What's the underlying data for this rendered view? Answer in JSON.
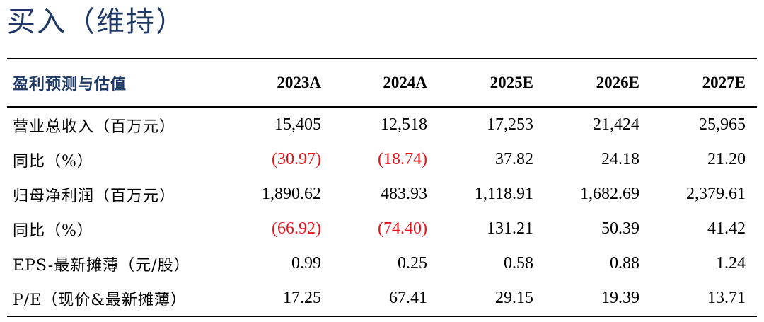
{
  "rating": "买入（维持）",
  "table": {
    "metric_header": "盈利预测与估值",
    "years": [
      "2023A",
      "2024A",
      "2025E",
      "2026E",
      "2027E"
    ],
    "negative_color": "#e8141b",
    "rows": [
      {
        "label": "营业总收入（百万元）",
        "values": [
          "15,405",
          "12,518",
          "17,253",
          "21,424",
          "25,965"
        ],
        "negative": [
          false,
          false,
          false,
          false,
          false
        ]
      },
      {
        "label": "同比（%）",
        "values": [
          "(30.97)",
          "(18.74)",
          "37.82",
          "24.18",
          "21.20"
        ],
        "negative": [
          true,
          true,
          false,
          false,
          false
        ]
      },
      {
        "label": "归母净利润（百万元）",
        "values": [
          "1,890.62",
          "483.93",
          "1,118.91",
          "1,682.69",
          "2,379.61"
        ],
        "negative": [
          false,
          false,
          false,
          false,
          false
        ]
      },
      {
        "label": "同比（%）",
        "values": [
          "(66.92)",
          "(74.40)",
          "131.21",
          "50.39",
          "41.42"
        ],
        "negative": [
          true,
          true,
          false,
          false,
          false
        ]
      },
      {
        "label": "EPS-最新摊薄（元/股）",
        "values": [
          "0.99",
          "0.25",
          "0.58",
          "0.88",
          "1.24"
        ],
        "negative": [
          false,
          false,
          false,
          false,
          false
        ]
      },
      {
        "label": "P/E（现价&最新摊薄）",
        "values": [
          "17.25",
          "67.41",
          "29.15",
          "19.39",
          "13.71"
        ],
        "negative": [
          false,
          false,
          false,
          false,
          false
        ]
      }
    ]
  }
}
